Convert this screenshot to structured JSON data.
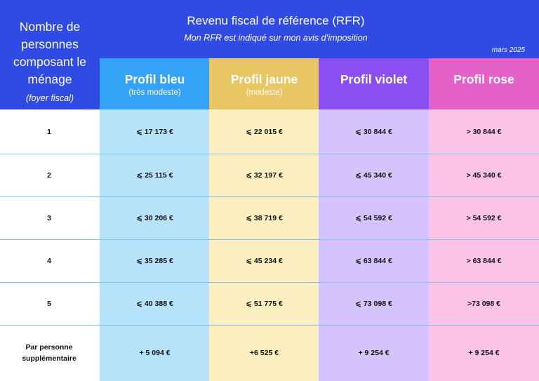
{
  "header": {
    "title": "Revenu fiscal de référence (RFR)",
    "subtitle": "Mon RFR est indiqué sur mon avis d’imposition",
    "date": "mars 2025"
  },
  "household_header": {
    "label": "Nombre de personnes composant le ménage",
    "note": "(foyer fiscal)"
  },
  "profiles": [
    {
      "name": "Profil bleu",
      "note": "(très modeste)",
      "header_color": "#34a3f7",
      "body_color": "#b6e2fa"
    },
    {
      "name": "Profil jaune",
      "note": "(modeste)",
      "header_color": "#e8c663",
      "body_color": "#fbefc1"
    },
    {
      "name": "Profil violet",
      "note": "",
      "header_color": "#8b4ef0",
      "body_color": "#d5c4fb"
    },
    {
      "name": "Profil rose",
      "note": "",
      "header_color": "#e361c8",
      "body_color": "#fbc4e6"
    }
  ],
  "rows": [
    {
      "label": "1",
      "values": [
        "⩽ 17 173 €",
        "⩽ 22 015 €",
        "⩽ 30 844 €",
        "> 30 844 €"
      ]
    },
    {
      "label": "2",
      "values": [
        "⩽ 25 115 €",
        "⩽ 32 197 €",
        "⩽ 45 340 €",
        "> 45 340 €"
      ]
    },
    {
      "label": "3",
      "values": [
        "⩽ 30 206 €",
        "⩽ 38 719 €",
        "⩽ 54 592 €",
        "> 54 592 €"
      ]
    },
    {
      "label": "4",
      "values": [
        "⩽ 35 285 €",
        "⩽ 45 234 €",
        "⩽ 63 844 €",
        "> 63 844 €"
      ]
    },
    {
      "label": "5",
      "values": [
        "⩽ 40 388 €",
        "⩽ 51 775 €",
        "⩽ 73 098 €",
        ">73 098 €"
      ]
    },
    {
      "label": "Par personne supplémentaire",
      "values": [
        "+ 5 094 €",
        "+6 525 €",
        "+ 9 254 €",
        "+ 9 254 €"
      ]
    }
  ],
  "colors": {
    "header_band": "#2f4be3",
    "row_divider": "#7fc3e8"
  }
}
